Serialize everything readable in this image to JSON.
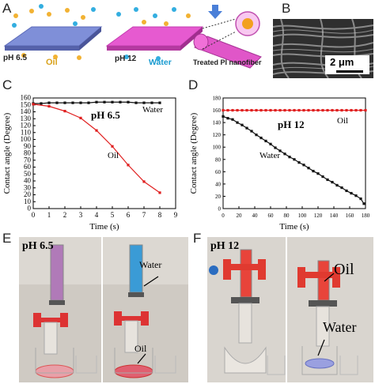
{
  "panels": {
    "A": {
      "label": "A",
      "left_ph": "pH 6.5",
      "left_liquid": "Oil",
      "mid_ph": "pH 12",
      "mid_liquid": "Water",
      "right_caption": "Treated PI nanofiber"
    },
    "B": {
      "label": "B",
      "scale_bar": "2 μm"
    },
    "C": {
      "label": "C"
    },
    "D": {
      "label": "D"
    },
    "E": {
      "label": "E",
      "ph": "pH 6.5",
      "water": "Water",
      "oil": "Oil"
    },
    "F": {
      "label": "F",
      "ph": "pH 12",
      "oil": "Oil",
      "water": "Water"
    }
  },
  "colors": {
    "oil_label": "#d9a21b",
    "water_label": "#1a9bd0",
    "red_series": "#e02020",
    "black_series": "#111111"
  },
  "chart_data": [
    {
      "type": "line",
      "panel": "C",
      "inner_label": "pH 6.5",
      "xlabel": "Time (s)",
      "ylabel": "Contact angle (Degree)",
      "xlim": [
        0,
        9
      ],
      "ylim": [
        0,
        160
      ],
      "xticks": [
        0,
        1,
        2,
        3,
        4,
        5,
        6,
        7,
        8,
        9
      ],
      "yticks": [
        0,
        10,
        20,
        30,
        40,
        50,
        60,
        70,
        80,
        90,
        100,
        110,
        120,
        130,
        140,
        150,
        160
      ],
      "series": [
        {
          "name": "Water",
          "color": "#111111",
          "x": [
            0,
            0.5,
            1,
            1.5,
            2,
            2.5,
            3,
            3.5,
            4,
            4.5,
            5,
            5.5,
            6,
            6.5,
            7,
            7.5,
            8
          ],
          "y": [
            152,
            152,
            153,
            153,
            153,
            153,
            153,
            153,
            154,
            154,
            154,
            154,
            154,
            153,
            153,
            153,
            153
          ]
        },
        {
          "name": "Oil",
          "color": "#e02020",
          "x": [
            0,
            1,
            2,
            3,
            4,
            5,
            6,
            7,
            8
          ],
          "y": [
            151,
            148,
            141,
            131,
            113,
            90,
            63,
            39,
            23
          ]
        }
      ]
    },
    {
      "type": "line",
      "panel": "D",
      "inner_label": "pH 12",
      "xlabel": "Time (s)",
      "ylabel": "Contact angle (Degree)",
      "xlim": [
        0,
        180
      ],
      "ylim": [
        0,
        180
      ],
      "xticks": [
        0,
        20,
        40,
        60,
        80,
        100,
        120,
        140,
        160,
        180
      ],
      "yticks": [
        0,
        20,
        40,
        60,
        80,
        100,
        120,
        140,
        160,
        180
      ],
      "series": [
        {
          "name": "Oil",
          "color": "#e02020",
          "x": [
            0,
            6,
            12,
            18,
            24,
            30,
            36,
            42,
            48,
            54,
            60,
            66,
            72,
            78,
            84,
            90,
            96,
            102,
            108,
            114,
            120,
            126,
            132,
            138,
            144,
            150,
            156,
            162,
            168,
            174,
            180
          ],
          "y": [
            160,
            160,
            160,
            160,
            160,
            160,
            160,
            160,
            160,
            160,
            160,
            160,
            160,
            160,
            160,
            160,
            160,
            160,
            160,
            160,
            160,
            160,
            160,
            160,
            160,
            160,
            160,
            160,
            160,
            160,
            160
          ]
        },
        {
          "name": "Water",
          "color": "#111111",
          "x": [
            0,
            6,
            12,
            18,
            24,
            30,
            36,
            42,
            48,
            54,
            60,
            66,
            72,
            78,
            84,
            90,
            96,
            102,
            108,
            114,
            120,
            126,
            132,
            138,
            144,
            150,
            156,
            162,
            168,
            174,
            178
          ],
          "y": [
            150,
            147,
            145,
            140,
            136,
            131,
            126,
            120,
            115,
            110,
            105,
            99,
            94,
            89,
            84,
            80,
            75,
            71,
            66,
            61,
            57,
            52,
            47,
            43,
            38,
            34,
            29,
            25,
            21,
            16,
            8
          ]
        }
      ]
    }
  ]
}
